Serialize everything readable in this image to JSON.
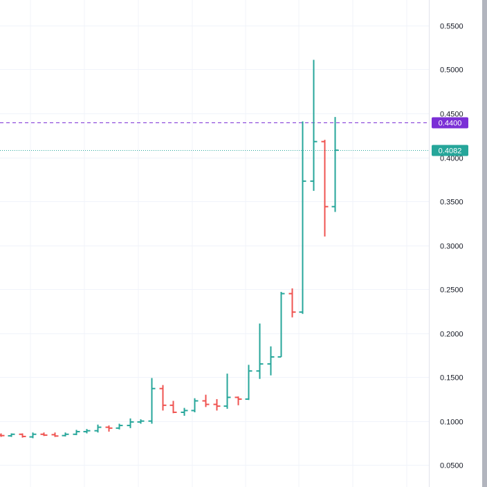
{
  "chart_data": {
    "type": "ohlc",
    "title": "",
    "xlabel": "",
    "ylabel": "",
    "ylim": [
      0.025,
      0.5791
    ],
    "y_ticks": [
      "0.0500",
      "0.1000",
      "0.1500",
      "0.2000",
      "0.2500",
      "0.3000",
      "0.3500",
      "0.4000",
      "0.4500",
      "0.5000",
      "0.5500"
    ],
    "y_tick_values": [
      0.05,
      0.1,
      0.15,
      0.2,
      0.25,
      0.3,
      0.35,
      0.4,
      0.45,
      0.5,
      0.55
    ],
    "grid": true,
    "colors": {
      "up": "#26a69a",
      "down": "#ef5350",
      "alert": "#7b2fd6",
      "grid": "#f0f3fa",
      "axis_text": "#131722"
    },
    "bars": [
      {
        "o": 0.084,
        "h": 0.086,
        "l": 0.082,
        "c": 0.0835
      },
      {
        "o": 0.0832,
        "h": 0.086,
        "l": 0.082,
        "c": 0.085
      },
      {
        "o": 0.085,
        "h": 0.086,
        "l": 0.0812,
        "c": 0.0825
      },
      {
        "o": 0.082,
        "h": 0.087,
        "l": 0.0805,
        "c": 0.085
      },
      {
        "o": 0.085,
        "h": 0.087,
        "l": 0.083,
        "c": 0.084
      },
      {
        "o": 0.0845,
        "h": 0.087,
        "l": 0.082,
        "c": 0.083
      },
      {
        "o": 0.0835,
        "h": 0.087,
        "l": 0.0825,
        "c": 0.085
      },
      {
        "o": 0.085,
        "h": 0.09,
        "l": 0.084,
        "c": 0.088
      },
      {
        "o": 0.088,
        "h": 0.091,
        "l": 0.086,
        "c": 0.089
      },
      {
        "o": 0.089,
        "h": 0.096,
        "l": 0.087,
        "c": 0.093
      },
      {
        "o": 0.093,
        "h": 0.095,
        "l": 0.088,
        "c": 0.092
      },
      {
        "o": 0.092,
        "h": 0.097,
        "l": 0.0905,
        "c": 0.095
      },
      {
        "o": 0.095,
        "h": 0.103,
        "l": 0.092,
        "c": 0.099
      },
      {
        "o": 0.099,
        "h": 0.102,
        "l": 0.097,
        "c": 0.1
      },
      {
        "o": 0.1,
        "h": 0.149,
        "l": 0.097,
        "c": 0.137
      },
      {
        "o": 0.137,
        "h": 0.141,
        "l": 0.112,
        "c": 0.118
      },
      {
        "o": 0.118,
        "h": 0.123,
        "l": 0.109,
        "c": 0.11
      },
      {
        "o": 0.11,
        "h": 0.115,
        "l": 0.106,
        "c": 0.112
      },
      {
        "o": 0.112,
        "h": 0.126,
        "l": 0.11,
        "c": 0.123
      },
      {
        "o": 0.123,
        "h": 0.13,
        "l": 0.116,
        "c": 0.119
      },
      {
        "o": 0.119,
        "h": 0.125,
        "l": 0.112,
        "c": 0.117
      },
      {
        "o": 0.117,
        "h": 0.154,
        "l": 0.114,
        "c": 0.127
      },
      {
        "o": 0.127,
        "h": 0.128,
        "l": 0.118,
        "c": 0.125
      },
      {
        "o": 0.125,
        "h": 0.164,
        "l": 0.124,
        "c": 0.157
      },
      {
        "o": 0.157,
        "h": 0.211,
        "l": 0.148,
        "c": 0.165
      },
      {
        "o": 0.165,
        "h": 0.185,
        "l": 0.152,
        "c": 0.173
      },
      {
        "o": 0.173,
        "h": 0.247,
        "l": 0.173,
        "c": 0.245
      },
      {
        "o": 0.245,
        "h": 0.251,
        "l": 0.218,
        "c": 0.224
      },
      {
        "o": 0.224,
        "h": 0.441,
        "l": 0.222,
        "c": 0.373
      },
      {
        "o": 0.373,
        "h": 0.511,
        "l": 0.362,
        "c": 0.418
      },
      {
        "o": 0.418,
        "h": 0.42,
        "l": 0.31,
        "c": 0.344
      },
      {
        "o": 0.344,
        "h": 0.446,
        "l": 0.338,
        "c": 0.4082
      }
    ],
    "price_lines": [
      {
        "name": "alert",
        "value": 0.44,
        "label": "0.4400",
        "style": "dashed"
      },
      {
        "name": "last",
        "value": 0.4082,
        "label": "0.4082",
        "style": "dotted"
      }
    ]
  }
}
